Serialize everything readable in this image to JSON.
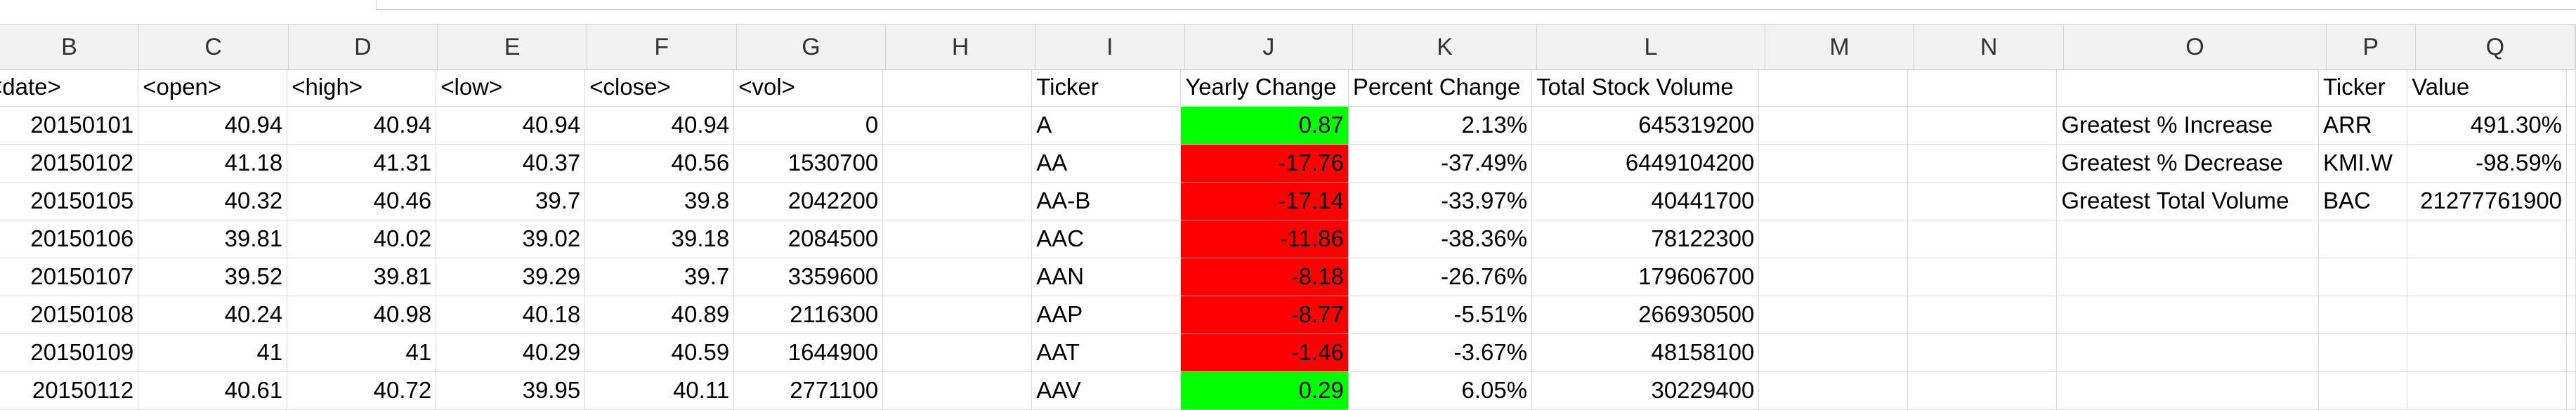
{
  "column_letters": [
    "B",
    "C",
    "D",
    "E",
    "F",
    "G",
    "H",
    "I",
    "J",
    "K",
    "L",
    "M",
    "N",
    "O",
    "P",
    "Q"
  ],
  "header_row": [
    "<date>",
    "<open>",
    "<high>",
    "<low>",
    "<close>",
    "<vol>",
    "",
    "Ticker",
    "Yearly Change",
    "Percent Change",
    "Total Stock Volume",
    "",
    "",
    "",
    "Ticker",
    "Value"
  ],
  "stock_rows": [
    {
      "date": "20150101",
      "open": "40.94",
      "high": "40.94",
      "low": "40.94",
      "close": "40.94",
      "vol": "0",
      "ticker": "A",
      "yearly_change": "0.87",
      "percent_change": "2.13%",
      "total_volume": "645319200"
    },
    {
      "date": "20150102",
      "open": "41.18",
      "high": "41.31",
      "low": "40.37",
      "close": "40.56",
      "vol": "1530700",
      "ticker": "AA",
      "yearly_change": "-17.76",
      "percent_change": "-37.49%",
      "total_volume": "6449104200"
    },
    {
      "date": "20150105",
      "open": "40.32",
      "high": "40.46",
      "low": "39.7",
      "close": "39.8",
      "vol": "2042200",
      "ticker": "AA-B",
      "yearly_change": "-17.14",
      "percent_change": "-33.97%",
      "total_volume": "40441700"
    },
    {
      "date": "20150106",
      "open": "39.81",
      "high": "40.02",
      "low": "39.02",
      "close": "39.18",
      "vol": "2084500",
      "ticker": "AAC",
      "yearly_change": "-11.86",
      "percent_change": "-38.36%",
      "total_volume": "78122300"
    },
    {
      "date": "20150107",
      "open": "39.52",
      "high": "39.81",
      "low": "39.29",
      "close": "39.7",
      "vol": "3359600",
      "ticker": "AAN",
      "yearly_change": "-8.18",
      "percent_change": "-26.76%",
      "total_volume": "179606700"
    },
    {
      "date": "20150108",
      "open": "40.24",
      "high": "40.98",
      "low": "40.18",
      "close": "40.89",
      "vol": "2116300",
      "ticker": "AAP",
      "yearly_change": "-8.77",
      "percent_change": "-5.51%",
      "total_volume": "266930500"
    },
    {
      "date": "20150109",
      "open": "41",
      "high": "41",
      "low": "40.29",
      "close": "40.59",
      "vol": "1644900",
      "ticker": "AAT",
      "yearly_change": "-1.46",
      "percent_change": "-3.67%",
      "total_volume": "48158100"
    },
    {
      "date": "20150112",
      "open": "40.61",
      "high": "40.72",
      "low": "39.95",
      "close": "40.11",
      "vol": "2771100",
      "ticker": "AAV",
      "yearly_change": "0.29",
      "percent_change": "6.05%",
      "total_volume": "30229400"
    }
  ],
  "summary_rows": [
    {
      "label": "Greatest % Increase",
      "ticker": "ARR",
      "value": "491.30%"
    },
    {
      "label": "Greatest % Decrease",
      "ticker": "KMI.W",
      "value": "-98.59%"
    },
    {
      "label": "Greatest Total Volume",
      "ticker": "BAC",
      "value": "21277761900"
    }
  ],
  "colors": {
    "positive": "#00ff00",
    "negative": "#ff0000"
  }
}
